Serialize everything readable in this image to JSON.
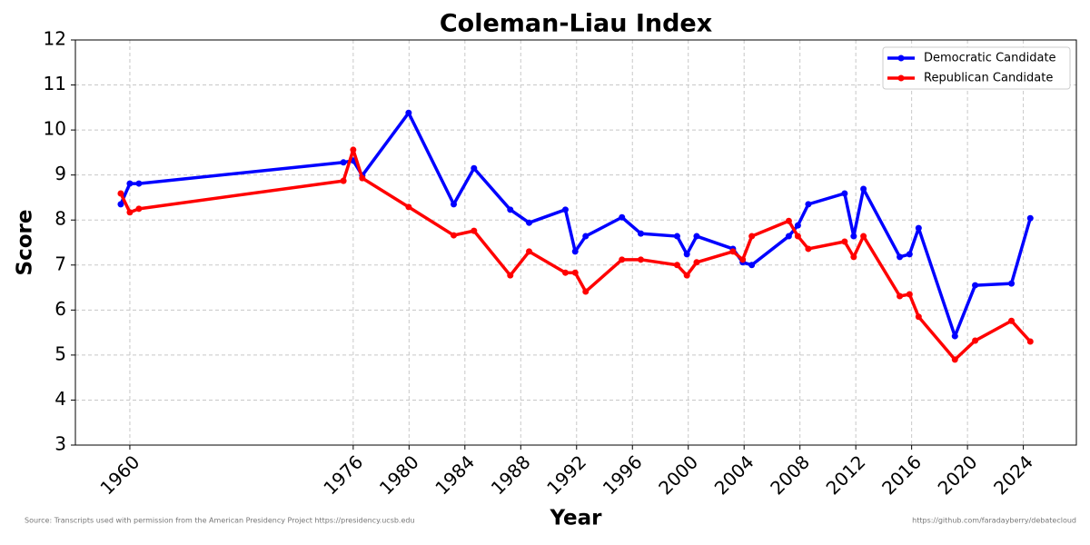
{
  "chart_data": {
    "type": "line",
    "title": "Coleman-Liau Index",
    "x_label": "Year",
    "y_label": "Score",
    "x": [
      1959.35,
      1960,
      1960.65,
      1975.3,
      1976,
      1976.65,
      1979.97,
      1983.2,
      1984.65,
      1987.25,
      1988.6,
      1991.2,
      1991.9,
      1992.65,
      1995.25,
      1996.6,
      1999.2,
      1999.9,
      2000.6,
      2003.2,
      2003.9,
      2004.55,
      2007.2,
      2007.85,
      2008.6,
      2011.2,
      2011.85,
      2012.55,
      2015.15,
      2015.85,
      2016.5,
      2019.1,
      2020.55,
      2023.15,
      2024.5
    ],
    "series": [
      {
        "name": "Democratic Candidate",
        "color": "#0000ff",
        "values": [
          8.35,
          8.81,
          8.81,
          9.28,
          9.32,
          8.99,
          10.38,
          8.35,
          9.15,
          8.23,
          7.94,
          8.23,
          7.3,
          7.64,
          8.06,
          7.7,
          7.64,
          7.24,
          7.64,
          7.36,
          7.06,
          7.0,
          7.64,
          7.88,
          8.35,
          8.59,
          7.64,
          8.69,
          7.18,
          7.24,
          7.82,
          5.42,
          6.55,
          6.59,
          8.04
        ]
      },
      {
        "name": "Republican Candidate",
        "color": "#ff0000",
        "values": [
          8.59,
          8.17,
          8.25,
          8.87,
          9.56,
          8.93,
          8.29,
          7.66,
          7.76,
          6.77,
          7.3,
          6.83,
          6.83,
          6.41,
          7.12,
          7.12,
          7.0,
          6.77,
          7.06,
          7.3,
          7.12,
          7.64,
          7.98,
          7.64,
          7.36,
          7.52,
          7.18,
          7.64,
          6.31,
          6.35,
          5.85,
          4.9,
          5.32,
          5.76,
          5.3
        ]
      }
    ],
    "xlim": [
      1956.1,
      2027.8
    ],
    "ylim": [
      3,
      12
    ],
    "xticks": [
      1960,
      1976,
      1980,
      1984,
      1988,
      1992,
      1996,
      2000,
      2004,
      2008,
      2012,
      2016,
      2020,
      2024
    ],
    "yticks": [
      3,
      4,
      5,
      6,
      7,
      8,
      9,
      10,
      11,
      12
    ],
    "grid": true,
    "legend": "upper right",
    "source": "Source: Transcripts used with permission from the American Presidency Project https://presidency.ucsb.edu",
    "credit": "https://github.com/faradayberry/debatecloud"
  }
}
